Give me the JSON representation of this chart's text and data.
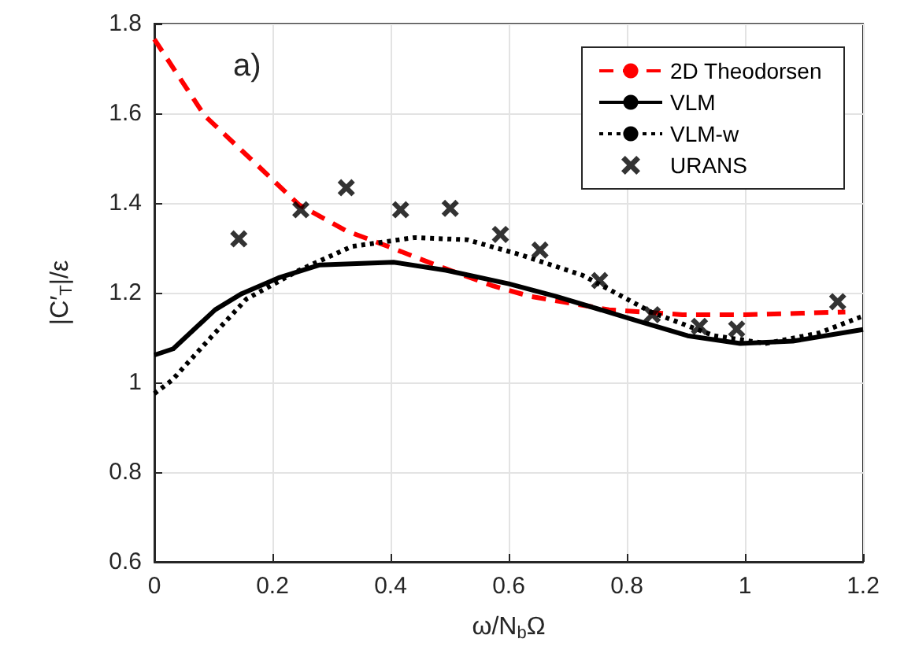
{
  "chart_data": {
    "type": "line",
    "xlabel": "ω/N$_{b}$Ω",
    "ylabel": "|C′$_{T}$|/ε",
    "annotations": [
      "a)"
    ],
    "xlim": [
      0,
      1.2
    ],
    "xticks": [
      0,
      0.2,
      0.4,
      0.6,
      0.8,
      1,
      1.2
    ],
    "ylim": [
      0.6,
      1.8
    ],
    "yticks": [
      0.6,
      0.8,
      1,
      1.2,
      1.4,
      1.6,
      1.8
    ],
    "grid": true,
    "legend": "top right",
    "series": [
      {
        "name": "2D Theodorsen",
        "color": "#ff0000",
        "line_style": "dashed",
        "marker": "none",
        "x": [
          0,
          0.085,
          0.165,
          0.245,
          0.325,
          0.396,
          0.476,
          0.574,
          0.636,
          0.77,
          0.894,
          1.0,
          1.17
        ],
        "values": [
          1.765,
          1.595,
          1.496,
          1.396,
          1.338,
          1.303,
          1.262,
          1.215,
          1.192,
          1.162,
          1.151,
          1.151,
          1.157
        ]
      },
      {
        "name": "VLM",
        "color": "#000000",
        "line_style": "solid",
        "marker": "none",
        "x": [
          0,
          0.032,
          0.103,
          0.148,
          0.21,
          0.28,
          0.405,
          0.494,
          0.6,
          0.68,
          0.814,
          0.903,
          0.992,
          1.081,
          1.2
        ],
        "values": [
          1.061,
          1.075,
          1.162,
          1.198,
          1.233,
          1.262,
          1.268,
          1.25,
          1.22,
          1.192,
          1.139,
          1.104,
          1.087,
          1.092,
          1.118
        ]
      },
      {
        "name": "VLM-w",
        "color": "#000000",
        "line_style": "dotted",
        "marker": "none",
        "x": [
          0,
          0.03,
          0.094,
          0.156,
          0.245,
          0.334,
          0.441,
          0.53,
          0.619,
          0.725,
          0.841,
          0.948,
          1.036,
          1.125,
          1.2
        ],
        "values": [
          0.975,
          1.005,
          1.098,
          1.186,
          1.25,
          1.303,
          1.323,
          1.318,
          1.285,
          1.239,
          1.157,
          1.104,
          1.087,
          1.11,
          1.148
        ]
      },
      {
        "name": "URANS",
        "type": "scatter",
        "color": "#000000",
        "marker": "cross",
        "x": [
          0.143,
          0.248,
          0.325,
          0.417,
          0.501,
          0.586,
          0.653,
          0.754,
          0.843,
          0.923,
          0.986,
          1.157
        ],
        "values": [
          1.32,
          1.385,
          1.434,
          1.385,
          1.388,
          1.33,
          1.295,
          1.227,
          1.151,
          1.125,
          1.119,
          1.18
        ]
      }
    ]
  }
}
